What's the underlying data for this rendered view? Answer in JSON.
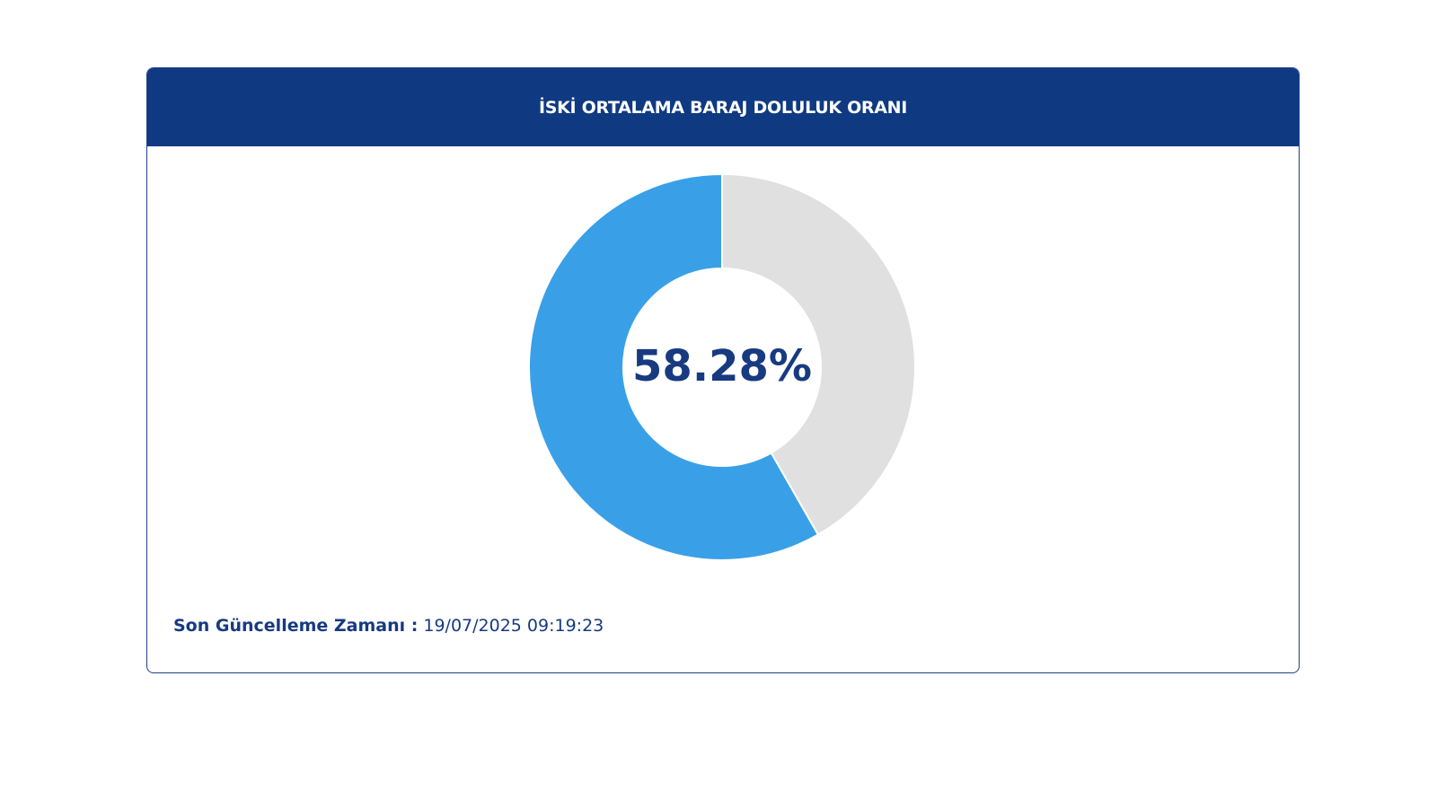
{
  "chart_data": {
    "type": "donut",
    "title": "İSKİ ORTALAMA BARAJ DOLULUK ORANI",
    "values": [
      58.28,
      41.72
    ],
    "colors": [
      "#39a0e8",
      "#e0e0e0"
    ],
    "center_label": "58.28%"
  },
  "footer": {
    "label": "Son Güncelleme Zamanı :",
    "timestamp": "19/07/2025 09:19:23"
  }
}
